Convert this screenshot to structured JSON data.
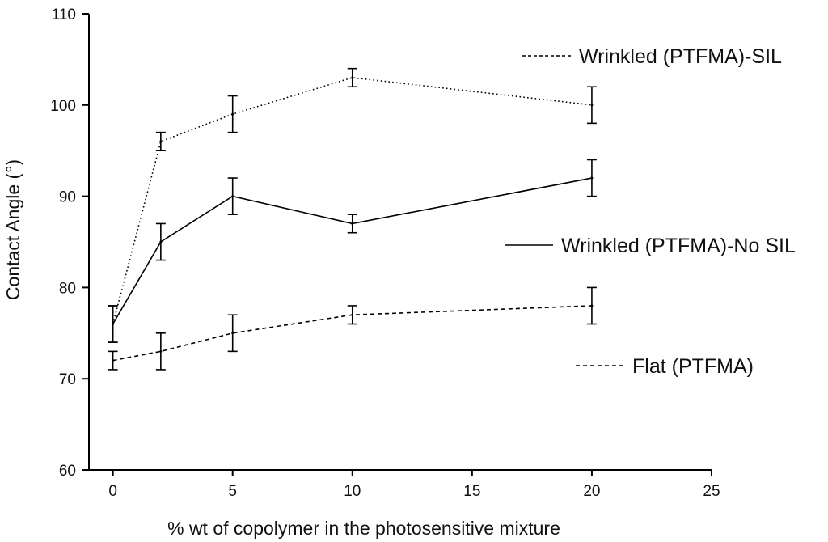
{
  "chart_data": {
    "type": "line",
    "xlabel": "% wt of copolymer in the photosensitive mixture",
    "ylabel": "Contact Angle (°)",
    "xlim": [
      -1,
      25
    ],
    "ylim": [
      60,
      110
    ],
    "xticks": [
      0,
      5,
      10,
      15,
      20,
      25
    ],
    "yticks": [
      60,
      70,
      80,
      90,
      100,
      110
    ],
    "grid": false,
    "legend_placement": "inline labels to the right of the series",
    "series": [
      {
        "name": "Wrinkled (PTFMA)-SIL",
        "line_style": "dotted",
        "points": [
          {
            "x": 0,
            "y": 76,
            "err": 2
          },
          {
            "x": 2,
            "y": 96,
            "err": 1
          },
          {
            "x": 5,
            "y": 99,
            "err": 2
          },
          {
            "x": 10,
            "y": 103,
            "err": 1
          },
          {
            "x": 20,
            "y": 100,
            "err": 2
          }
        ]
      },
      {
        "name": "Wrinkled (PTFMA)-No SIL",
        "line_style": "solid",
        "points": [
          {
            "x": 0,
            "y": 76,
            "err": 2
          },
          {
            "x": 2,
            "y": 85,
            "err": 2
          },
          {
            "x": 5,
            "y": 90,
            "err": 2
          },
          {
            "x": 10,
            "y": 87,
            "err": 1
          },
          {
            "x": 20,
            "y": 92,
            "err": 2
          }
        ]
      },
      {
        "name": "Flat (PTFMA)",
        "line_style": "dashed",
        "points": [
          {
            "x": 0,
            "y": 72,
            "err": 1
          },
          {
            "x": 2,
            "y": 73,
            "err": 2
          },
          {
            "x": 5,
            "y": 75,
            "err": 2
          },
          {
            "x": 10,
            "y": 77,
            "err": 1
          },
          {
            "x": 20,
            "y": 78,
            "err": 2
          }
        ]
      }
    ]
  }
}
